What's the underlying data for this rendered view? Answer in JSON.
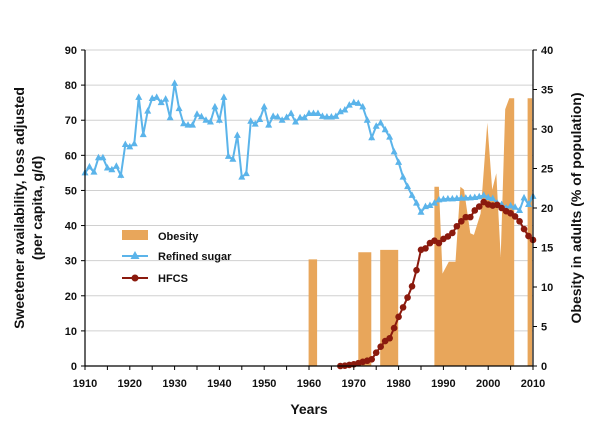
{
  "chart_data": {
    "type": "line",
    "xlabel": "Years",
    "ylabel_left": [
      "Sweetener availability, loss adjusted",
      "(per capita, g/d)"
    ],
    "ylabel_right": "Obesity in adults (% of population)",
    "xlim": [
      1910,
      2010
    ],
    "ylim_left": [
      0,
      90
    ],
    "ylim_right": [
      0,
      40
    ],
    "x_ticks": [
      "1910",
      "1920",
      "1930",
      "1940",
      "1950",
      "1960",
      "1970",
      "1980",
      "1990",
      "2000",
      "2010"
    ],
    "y_ticks_left": [
      "0",
      "10",
      "20",
      "30",
      "40",
      "50",
      "60",
      "70",
      "80",
      "90"
    ],
    "y_ticks_right": [
      "0",
      "5",
      "10",
      "15",
      "20",
      "25",
      "30",
      "35",
      "40"
    ],
    "grid": "horizontal",
    "legend_position": "middle-left",
    "series": [
      {
        "name": "Obesity",
        "type": "area",
        "axis": "right",
        "color": "#E8A65B",
        "points": [
          [
            1959.9,
            0
          ],
          [
            1959.9,
            13.5
          ],
          [
            1961.8,
            13.5
          ],
          [
            1961.8,
            0
          ],
          [
            1971,
            0
          ],
          [
            1971,
            14.4
          ],
          [
            1973.9,
            14.4
          ],
          [
            1973.9,
            0
          ],
          [
            1975.9,
            0
          ],
          [
            1975.9,
            14.7
          ],
          [
            1979.9,
            14.7
          ],
          [
            1979.9,
            0
          ],
          [
            1988,
            0
          ],
          [
            1988,
            22.7
          ],
          [
            1989,
            22.7
          ],
          [
            1989.8,
            11.7
          ],
          [
            1991.2,
            13.2
          ],
          [
            1992.7,
            13.2
          ],
          [
            1993.8,
            22.7
          ],
          [
            1994.6,
            22.3
          ],
          [
            1996,
            16.8
          ],
          [
            1996.8,
            16.6
          ],
          [
            1998.3,
            19.3
          ],
          [
            1999.8,
            30.8
          ],
          [
            2000.9,
            22.3
          ],
          [
            2001.8,
            24.4
          ],
          [
            2002.8,
            13.8
          ],
          [
            2003.8,
            32.5
          ],
          [
            2004.7,
            33.9
          ],
          [
            2005.8,
            33.9
          ],
          [
            2005.8,
            0
          ],
          [
            2008.8,
            0
          ],
          [
            2008.8,
            33.9
          ],
          [
            2009.8,
            33.9
          ],
          [
            2009.8,
            0
          ]
        ]
      },
      {
        "name": "Refined sugar",
        "type": "line",
        "axis": "left",
        "color": "#5BB4EA",
        "marker": "triangle",
        "x": [
          1910,
          1911,
          1912,
          1913,
          1914,
          1915,
          1916,
          1917,
          1918,
          1919,
          1920,
          1921,
          1922,
          1923,
          1924,
          1925,
          1926,
          1927,
          1928,
          1929,
          1930,
          1931,
          1932,
          1933,
          1934,
          1935,
          1936,
          1937,
          1938,
          1939,
          1940,
          1941,
          1942,
          1943,
          1944,
          1945,
          1946,
          1947,
          1948,
          1949,
          1950,
          1951,
          1952,
          1953,
          1954,
          1955,
          1956,
          1957,
          1958,
          1959,
          1960,
          1961,
          1962,
          1963,
          1964,
          1965,
          1966,
          1967,
          1968,
          1969,
          1970,
          1971,
          1972,
          1973,
          1974,
          1975,
          1976,
          1977,
          1978,
          1979,
          1980,
          1981,
          1982,
          1983,
          1984,
          1985,
          1986,
          1987,
          1988,
          1989,
          1990,
          1991,
          1992,
          1993,
          1994,
          1995,
          1996,
          1997,
          1998,
          1999,
          2000,
          2001,
          2002,
          2003,
          2004,
          2005,
          2006,
          2007,
          2008,
          2009,
          2010
        ],
        "y": [
          55,
          56.7,
          55.2,
          59.3,
          59.3,
          56.4,
          55.9,
          56.9,
          54.3,
          63.1,
          62.4,
          63.3,
          76.5,
          65.9,
          72.6,
          76.2,
          76.5,
          75,
          76,
          70.7,
          80.5,
          73.3,
          69,
          68.6,
          68.6,
          71.7,
          71,
          70,
          69.5,
          73.8,
          70,
          76.5,
          59.7,
          58.9,
          65.7,
          53.8,
          54.8,
          69.7,
          68.9,
          70.2,
          73.8,
          68.6,
          71.1,
          70.9,
          70,
          70.8,
          71.9,
          69.5,
          70.7,
          70.7,
          71.9,
          71.9,
          71.9,
          71.1,
          70.9,
          70.9,
          71.1,
          72.4,
          72.9,
          74.3,
          75,
          74.8,
          73.8,
          70,
          65,
          68.3,
          69.2,
          67.3,
          65.2,
          61,
          58,
          53.8,
          51.1,
          48.6,
          46.4,
          43.8,
          45.4,
          45.7,
          46.4,
          47.3,
          47.5,
          47.6,
          47.6,
          47.7,
          47.8,
          47.8,
          47.9,
          48,
          48.2,
          48.6,
          48,
          47.7,
          46.4,
          46,
          45,
          45.6,
          45.2,
          44.3,
          47.9,
          46,
          48.3
        ]
      },
      {
        "name": "HFCS",
        "type": "line",
        "axis": "left",
        "color": "#8B1A0E",
        "marker": "circle",
        "x": [
          1967,
          1968,
          1969,
          1970,
          1971,
          1972,
          1973,
          1974,
          1975,
          1976,
          1977,
          1978,
          1979,
          1980,
          1981,
          1982,
          1983,
          1984,
          1985,
          1986,
          1987,
          1988,
          1989,
          1990,
          1991,
          1992,
          1993,
          1994,
          1995,
          1996,
          1997,
          1998,
          1999,
          2000,
          2001,
          2002,
          2003,
          2004,
          2005,
          2006,
          2007,
          2008,
          2009,
          2010
        ],
        "y": [
          0,
          0.1,
          0.3,
          0.5,
          0.8,
          1.2,
          1.5,
          1.9,
          3.8,
          5.5,
          7.1,
          7.9,
          10.8,
          14,
          16.7,
          19.5,
          22.7,
          27.3,
          33.1,
          33.5,
          35,
          35.7,
          35,
          36.2,
          36.9,
          37.9,
          39.8,
          41.2,
          42.4,
          42.4,
          44.3,
          45.4,
          46.7,
          46,
          45.7,
          45.9,
          45,
          44.1,
          43.5,
          42.6,
          41.2,
          39,
          37,
          35.9
        ]
      }
    ]
  }
}
